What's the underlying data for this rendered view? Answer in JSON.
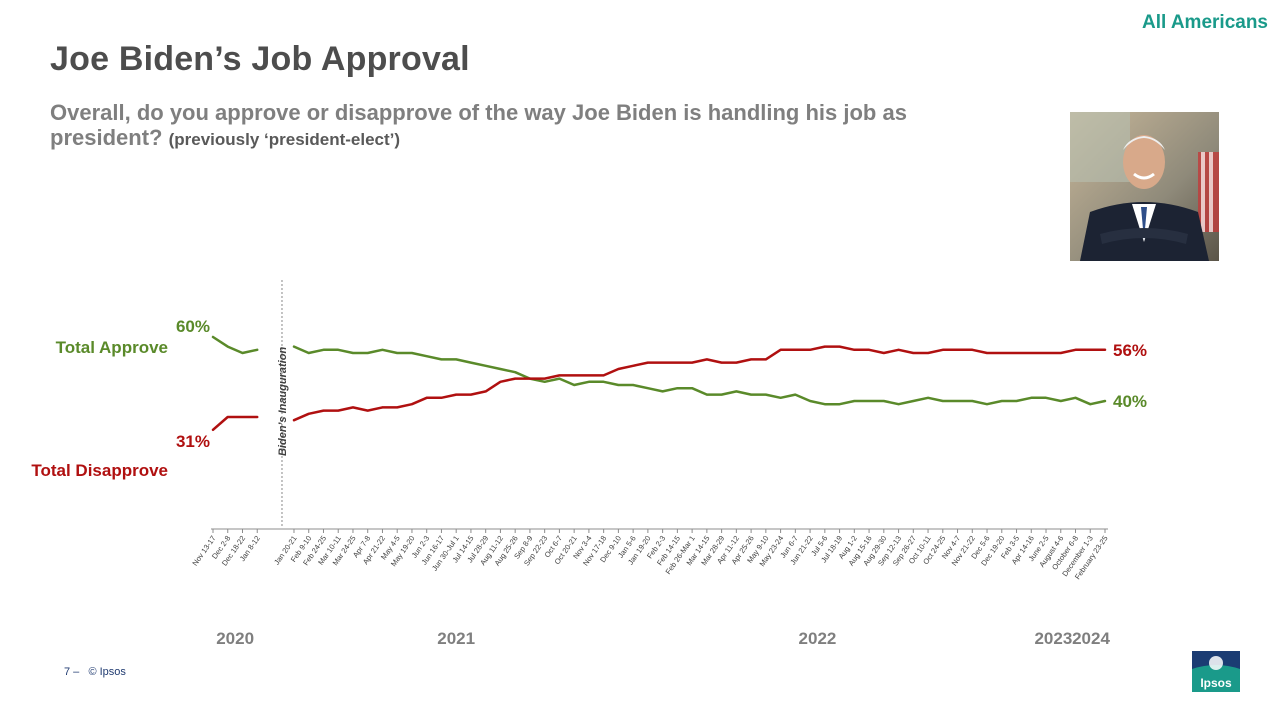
{
  "header": {
    "segment": "All Americans",
    "title": "Joe Biden’s Job Approval",
    "question": "Overall, do you approve or disapprove of the way Joe Biden is handling his job as president?",
    "question_note": "(previously ‘president-elect’)"
  },
  "footer": {
    "page": "7 –",
    "copyright": "© Ipsos",
    "logo_text": "Ipsos"
  },
  "colors": {
    "approve": "#5a8a2a",
    "disapprove": "#b01010",
    "accent": "#1a9a8a",
    "title": "#4d4d4d",
    "logo": "#1a9a8a"
  },
  "chart_data": {
    "type": "line",
    "ylim": [
      0,
      100
    ],
    "grid": false,
    "x_ticks": [
      "Nov 13-17",
      "Dec 2-8",
      "Dec 18-22",
      "Jan 8-12",
      "Jan 20-21",
      "Feb 9-10",
      "Feb 24-25",
      "Mar 10-11",
      "Mar 24-25",
      "Apr 7-8",
      "Apr 21-22",
      "May 4-5",
      "May 19-20",
      "Jun 2-3",
      "Jun 16-17",
      "Jun 30-Jul 1",
      "Jul 14-15",
      "Jul 28-29",
      "Aug 11-12",
      "Aug 25-26",
      "Sep 8-9",
      "Sep 22-23",
      "Oct 6-7",
      "Oct 20-21",
      "Nov 3-4",
      "Nov 17-18",
      "Dec 9-10",
      "Jan 5-6",
      "Jan 19-20",
      "Feb 2-3",
      "Feb 14-15",
      "Feb 26-Mar 1",
      "Mar 14-15",
      "Mar 28-29",
      "Apr 11-12",
      "Apr 25-26",
      "May 9-10",
      "May 23-24",
      "Jun 6-7",
      "Jun 21-22",
      "Jul 5-6",
      "Jul 18-19",
      "Aug 1-2",
      "Aug 15-16",
      "Aug 29-30",
      "Sep 12-13",
      "Sep 26-27",
      "Oct 10-11",
      "Oct 24-25",
      "Nov 4-7",
      "Nov 21-22",
      "Dec 5-6",
      "Dec 19-20",
      "Feb 3-5",
      "Apr 14-16",
      "June 2-5",
      "August 4-6",
      "October 6-8",
      "December 1-3",
      "February 23-25"
    ],
    "years": [
      {
        "label": "2020",
        "start": "Nov 13-17"
      },
      {
        "label": "2021",
        "start": "Jan 20-21"
      },
      {
        "label": "2022",
        "start": "Jan 5-6"
      },
      {
        "label": "2023",
        "start": "Feb 3-5"
      },
      {
        "label": "2024",
        "start": "February 23-25"
      }
    ],
    "annotation": {
      "text": "Biden’s Inauguration",
      "at": "Jan 20-21"
    },
    "series": [
      {
        "name": "Total Approve",
        "start_label": "60%",
        "end_label": "40%",
        "values": [
          60,
          57,
          55,
          56,
          57,
          55,
          56,
          56,
          55,
          55,
          56,
          55,
          55,
          54,
          53,
          53,
          52,
          51,
          50,
          49,
          47,
          46,
          47,
          45,
          46,
          46,
          45,
          45,
          44,
          43,
          44,
          44,
          42,
          42,
          43,
          42,
          42,
          41,
          42,
          40,
          39,
          39,
          40,
          40,
          40,
          39,
          40,
          41,
          40,
          40,
          40,
          39,
          40,
          40,
          41,
          41,
          40,
          41,
          39,
          40
        ]
      },
      {
        "name": "Total Disapprove",
        "start_label": "31%",
        "end_label": "56%",
        "values": [
          31,
          35,
          35,
          35,
          34,
          36,
          37,
          37,
          38,
          37,
          38,
          38,
          39,
          41,
          41,
          42,
          42,
          43,
          46,
          47,
          47,
          47,
          48,
          48,
          48,
          48,
          50,
          51,
          52,
          52,
          52,
          52,
          53,
          52,
          52,
          53,
          53,
          56,
          56,
          56,
          57,
          57,
          56,
          56,
          55,
          56,
          55,
          55,
          56,
          56,
          56,
          55,
          55,
          55,
          55,
          55,
          55,
          56,
          56,
          56
        ]
      }
    ]
  }
}
